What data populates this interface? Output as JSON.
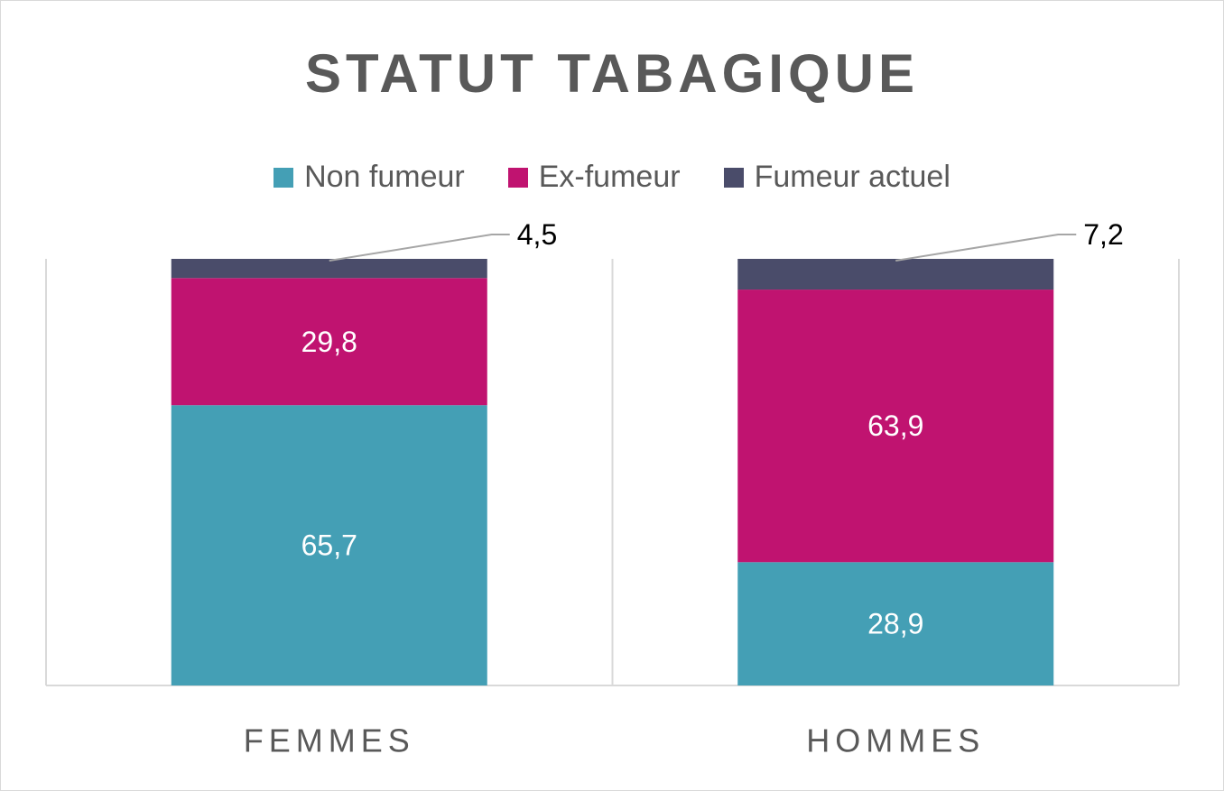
{
  "chart_data": {
    "type": "bar",
    "stacked": true,
    "title": "STATUT TABAGIQUE",
    "categories": [
      "FEMMES",
      "HOMMES"
    ],
    "series": [
      {
        "name": "Non fumeur",
        "values": [
          65.7,
          28.9
        ],
        "labels": [
          "65,7",
          "28,9"
        ],
        "color": "#449fb5",
        "label_color": "#ffffff"
      },
      {
        "name": "Ex-fumeur",
        "values": [
          29.8,
          63.9
        ],
        "labels": [
          "29,8",
          "63,9"
        ],
        "color": "#c01370",
        "label_color": "#ffffff"
      },
      {
        "name": "Fumeur actuel",
        "values": [
          4.5,
          7.2
        ],
        "labels": [
          "4,5",
          "7,2"
        ],
        "color": "#4a4c6a",
        "label_color": "#000000"
      }
    ],
    "ylim": [
      0,
      100
    ],
    "legend": "top",
    "grid": false
  }
}
